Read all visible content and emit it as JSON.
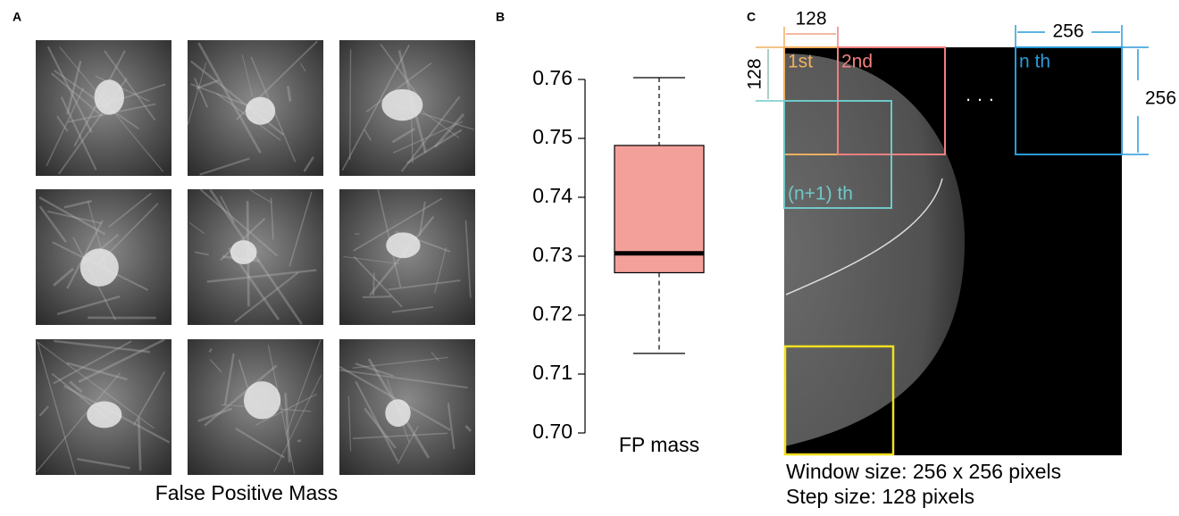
{
  "panels": {
    "a": {
      "label": "A",
      "caption": "False Positive Mass"
    },
    "b": {
      "label": "B"
    },
    "c": {
      "label": "C",
      "step_width": "128",
      "step_height": "128",
      "window_width": "256",
      "window_height": "256",
      "windows": [
        "1st",
        "2nd",
        "n th",
        "(n+1) th"
      ],
      "ellipsis": "· · ·",
      "notes": [
        "Window size: 256 x 256 pixels",
        "Step size: 128 pixels"
      ]
    }
  },
  "chart_data": {
    "type": "box",
    "categories": [
      "FP mass"
    ],
    "stats": [
      {
        "min": 0.7135,
        "q1": 0.7272,
        "median": 0.7305,
        "q3": 0.7488,
        "max": 0.7603
      }
    ],
    "color": "#f4a09a",
    "ylim": [
      0.7,
      0.7605
    ],
    "yticks": [
      {
        "value": 0.7,
        "label": "0.70"
      },
      0.71,
      0.72,
      0.73,
      0.74,
      0.75,
      0.76
    ]
  }
}
